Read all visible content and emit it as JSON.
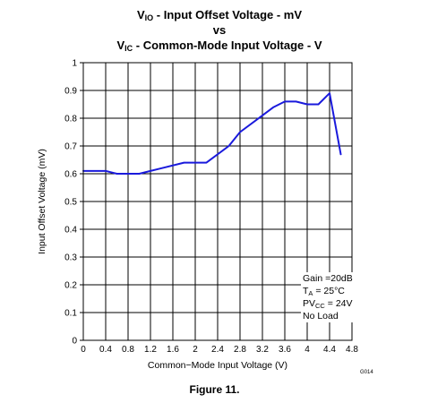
{
  "title": {
    "line1": {
      "pre": "V",
      "sub": "IO",
      "post": " - Input Offset Voltage - mV"
    },
    "line2": "vs",
    "line3": {
      "pre": "V",
      "sub": "IC",
      "post": " - Common-Mode Input Voltage - V"
    }
  },
  "chart_data": {
    "type": "line",
    "xlabel": "Common−Mode Input Voltage (V)",
    "ylabel": "Input Offset Voltage (mV)",
    "xlim": [
      0,
      4.8
    ],
    "ylim": [
      0,
      1
    ],
    "x_ticks": [
      "0",
      "0.4",
      "0.8",
      "1.2",
      "1.6",
      "2",
      "2.4",
      "2.8",
      "3.2",
      "3.6",
      "4",
      "4.4",
      "4.8"
    ],
    "y_ticks": [
      "0",
      "0.1",
      "0.2",
      "0.3",
      "0.4",
      "0.5",
      "0.6",
      "0.7",
      "0.8",
      "0.9",
      "1"
    ],
    "grid": true,
    "series": [
      {
        "color": "#1a1adc",
        "x": [
          0,
          0.4,
          0.6,
          1.0,
          1.2,
          1.4,
          1.8,
          2.2,
          2.6,
          2.8,
          3.2,
          3.4,
          3.6,
          3.8,
          4.0,
          4.2,
          4.4,
          4.6
        ],
        "y": [
          0.61,
          0.61,
          0.6,
          0.6,
          0.61,
          0.62,
          0.64,
          0.64,
          0.7,
          0.75,
          0.81,
          0.84,
          0.86,
          0.86,
          0.85,
          0.85,
          0.89,
          0.67
        ]
      }
    ]
  },
  "annotation": {
    "line1": "Gain =20dB",
    "line2": {
      "pre": "T",
      "sub": "A",
      "post": " = 25°C"
    },
    "line3": {
      "pre": "PV",
      "sub": "CC",
      "post": " = 24V"
    },
    "line4": "No Load"
  },
  "figure_code": "G014",
  "caption": "Figure 11."
}
